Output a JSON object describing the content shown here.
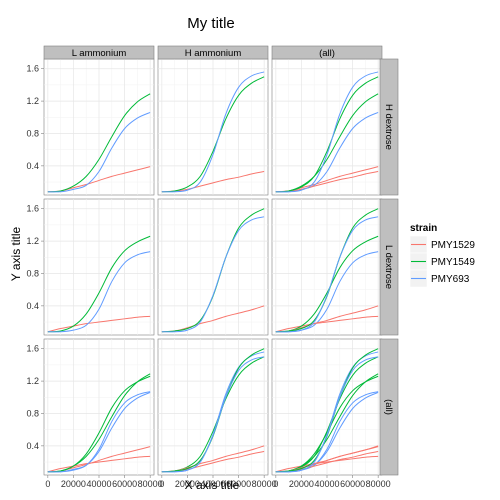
{
  "chart_data": {
    "type": "line",
    "title": "My title",
    "xlabel": "X axis title",
    "ylabel": "Y axis title",
    "xlim": [
      -3000,
      83000
    ],
    "ylim": [
      0.04,
      1.72
    ],
    "x_ticks": [
      0,
      20000,
      40000,
      60000,
      80000
    ],
    "x_tick_labels": [
      "0",
      "20000",
      "40000",
      "60000",
      "80000"
    ],
    "y_ticks": [
      0.4,
      0.8,
      1.2,
      1.6
    ],
    "y_tick_labels": [
      "0.4",
      "0.8",
      "1.2",
      "1.6"
    ],
    "grid": true,
    "col_facets": [
      "L ammonium",
      "H ammonium",
      "(all)"
    ],
    "row_facets": [
      "H dextrose",
      "L dextrose",
      "(all)"
    ],
    "legend": {
      "title": "strain",
      "position": "right",
      "entries": [
        {
          "label": "PMY1529",
          "color": "#F8766D"
        },
        {
          "label": "PMY1549",
          "color": "#00BA38"
        },
        {
          "label": "PMY693",
          "color": "#619CFF"
        }
      ]
    },
    "curves": {
      "LA_HD": {
        "PMY1529": [
          [
            0,
            0.08
          ],
          [
            10000,
            0.09
          ],
          [
            20000,
            0.13
          ],
          [
            30000,
            0.17
          ],
          [
            40000,
            0.22
          ],
          [
            50000,
            0.27
          ],
          [
            60000,
            0.31
          ],
          [
            70000,
            0.35
          ],
          [
            80000,
            0.39
          ]
        ],
        "PMY1549": [
          [
            0,
            0.08
          ],
          [
            10000,
            0.09
          ],
          [
            20000,
            0.15
          ],
          [
            30000,
            0.27
          ],
          [
            40000,
            0.48
          ],
          [
            50000,
            0.76
          ],
          [
            60000,
            1.02
          ],
          [
            70000,
            1.19
          ],
          [
            80000,
            1.29
          ]
        ],
        "PMY693": [
          [
            0,
            0.08
          ],
          [
            10000,
            0.08
          ],
          [
            20000,
            0.11
          ],
          [
            30000,
            0.16
          ],
          [
            40000,
            0.33
          ],
          [
            50000,
            0.62
          ],
          [
            60000,
            0.86
          ],
          [
            70000,
            0.99
          ],
          [
            80000,
            1.06
          ]
        ]
      },
      "HA_HD": {
        "PMY1529": [
          [
            0,
            0.08
          ],
          [
            10000,
            0.09
          ],
          [
            20000,
            0.11
          ],
          [
            30000,
            0.15
          ],
          [
            40000,
            0.19
          ],
          [
            50000,
            0.23
          ],
          [
            60000,
            0.26
          ],
          [
            70000,
            0.3
          ],
          [
            80000,
            0.33
          ]
        ],
        "PMY1549": [
          [
            0,
            0.08
          ],
          [
            10000,
            0.09
          ],
          [
            20000,
            0.14
          ],
          [
            30000,
            0.27
          ],
          [
            40000,
            0.58
          ],
          [
            50000,
            0.98
          ],
          [
            60000,
            1.27
          ],
          [
            70000,
            1.42
          ],
          [
            80000,
            1.5
          ]
        ],
        "PMY693": [
          [
            0,
            0.08
          ],
          [
            10000,
            0.08
          ],
          [
            20000,
            0.1
          ],
          [
            30000,
            0.2
          ],
          [
            40000,
            0.54
          ],
          [
            50000,
            1.04
          ],
          [
            60000,
            1.37
          ],
          [
            70000,
            1.51
          ],
          [
            80000,
            1.56
          ]
        ]
      },
      "LA_LD": {
        "PMY1529": [
          [
            0,
            0.08
          ],
          [
            10000,
            0.12
          ],
          [
            20000,
            0.15
          ],
          [
            30000,
            0.18
          ],
          [
            40000,
            0.2
          ],
          [
            50000,
            0.22
          ],
          [
            60000,
            0.24
          ],
          [
            70000,
            0.26
          ],
          [
            80000,
            0.27
          ]
        ],
        "PMY1549": [
          [
            0,
            0.08
          ],
          [
            10000,
            0.09
          ],
          [
            20000,
            0.15
          ],
          [
            30000,
            0.3
          ],
          [
            40000,
            0.56
          ],
          [
            50000,
            0.87
          ],
          [
            60000,
            1.08
          ],
          [
            70000,
            1.19
          ],
          [
            80000,
            1.26
          ]
        ],
        "PMY693": [
          [
            0,
            0.08
          ],
          [
            10000,
            0.08
          ],
          [
            20000,
            0.1
          ],
          [
            30000,
            0.16
          ],
          [
            40000,
            0.36
          ],
          [
            50000,
            0.7
          ],
          [
            60000,
            0.93
          ],
          [
            70000,
            1.03
          ],
          [
            80000,
            1.07
          ]
        ]
      },
      "HA_LD": {
        "PMY1529": [
          [
            0,
            0.08
          ],
          [
            10000,
            0.09
          ],
          [
            20000,
            0.13
          ],
          [
            30000,
            0.18
          ],
          [
            40000,
            0.22
          ],
          [
            50000,
            0.27
          ],
          [
            60000,
            0.31
          ],
          [
            70000,
            0.35
          ],
          [
            80000,
            0.4
          ]
        ],
        "PMY1549": [
          [
            0,
            0.08
          ],
          [
            10000,
            0.09
          ],
          [
            20000,
            0.12
          ],
          [
            30000,
            0.22
          ],
          [
            40000,
            0.52
          ],
          [
            50000,
            1.0
          ],
          [
            60000,
            1.36
          ],
          [
            70000,
            1.52
          ],
          [
            80000,
            1.6
          ]
        ],
        "PMY693": [
          [
            0,
            0.08
          ],
          [
            10000,
            0.08
          ],
          [
            20000,
            0.1
          ],
          [
            30000,
            0.2
          ],
          [
            40000,
            0.53
          ],
          [
            50000,
            1.0
          ],
          [
            60000,
            1.33
          ],
          [
            70000,
            1.46
          ],
          [
            80000,
            1.5
          ]
        ]
      }
    }
  }
}
